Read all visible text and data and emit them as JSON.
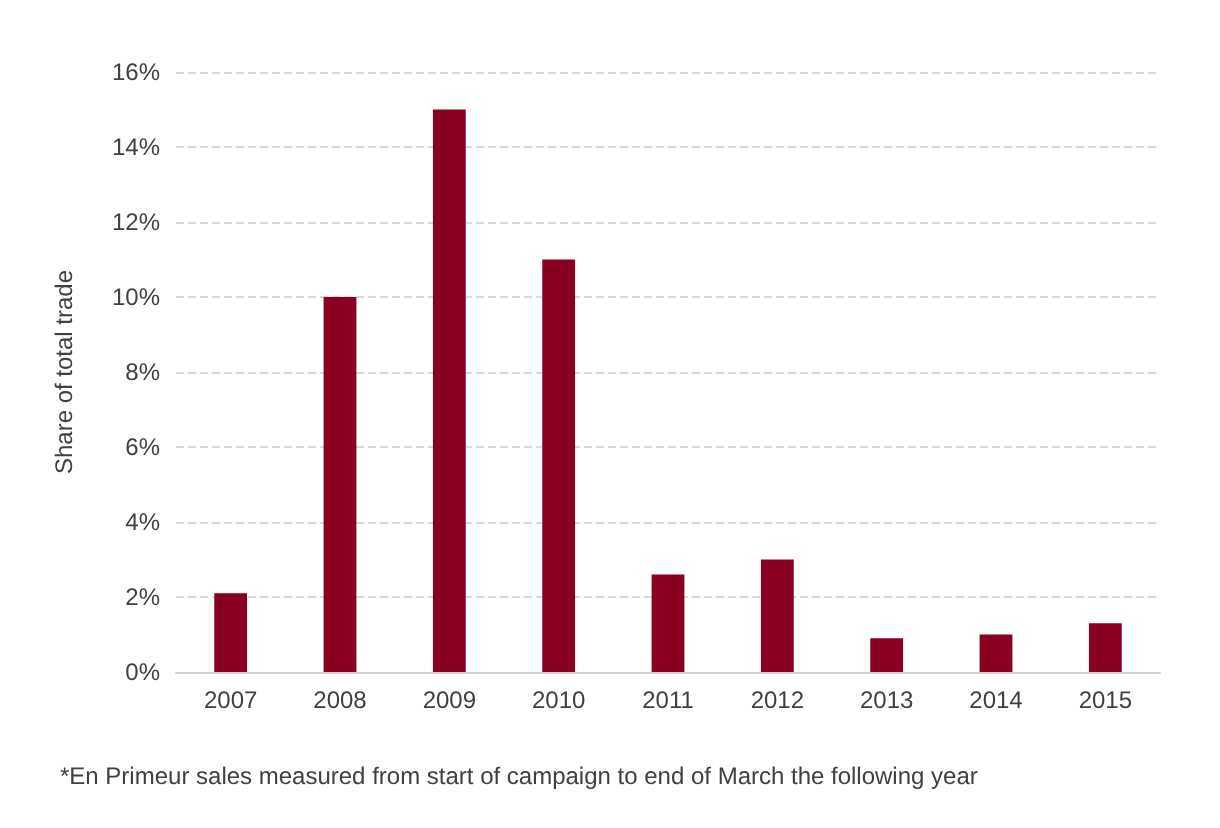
{
  "chart_data": {
    "type": "bar",
    "ylabel": "Share of total trade",
    "categories": [
      "2007",
      "2008",
      "2009",
      "2010",
      "2011",
      "2012",
      "2013",
      "2014",
      "2015"
    ],
    "values": [
      2.1,
      10.0,
      15.0,
      11.0,
      2.6,
      3.0,
      0.9,
      1.0,
      1.3
    ],
    "color": "#8a0020",
    "ylim": [
      0,
      16
    ],
    "yticks": [
      {
        "value": 0,
        "label": "0%"
      },
      {
        "value": 2,
        "label": "2%"
      },
      {
        "value": 4,
        "label": "4%"
      },
      {
        "value": 6,
        "label": "6%"
      },
      {
        "value": 8,
        "label": "8%"
      },
      {
        "value": 10,
        "label": "10%"
      },
      {
        "value": 12,
        "label": "12%"
      },
      {
        "value": 14,
        "label": "14%"
      },
      {
        "value": 16,
        "label": "16%"
      }
    ],
    "grid": "y",
    "annotations": [
      "*En Primeur sales measured from start of campaign to end of March the following year"
    ]
  }
}
